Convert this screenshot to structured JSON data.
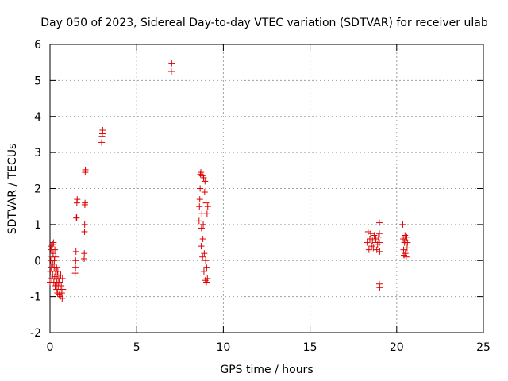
{
  "chart_data": {
    "type": "scatter",
    "title": "Day 050 of 2023, Sidereal Day-to-day VTEC variation (SDTVAR) for receiver ulab",
    "xlabel": "GPS time / hours",
    "ylabel": "SDTVAR / TECUs",
    "xlim": [
      0,
      25
    ],
    "ylim": [
      -2,
      6
    ],
    "xticks": [
      0,
      5,
      10,
      15,
      20,
      25
    ],
    "yticks": [
      -2,
      -1,
      0,
      1,
      2,
      3,
      4,
      5,
      6
    ],
    "grid": true,
    "legend": "none",
    "marker": "+",
    "color": "#dd0000",
    "series": [
      {
        "name": "SDTVAR",
        "points": [
          [
            0.0,
            -0.6
          ],
          [
            0.02,
            -0.3
          ],
          [
            0.04,
            0.0
          ],
          [
            0.05,
            0.3
          ],
          [
            0.06,
            0.4
          ],
          [
            0.08,
            -0.2
          ],
          [
            0.1,
            -0.5
          ],
          [
            0.12,
            0.1
          ],
          [
            0.14,
            0.45
          ],
          [
            0.15,
            -0.4
          ],
          [
            0.17,
            -0.1
          ],
          [
            0.18,
            0.2
          ],
          [
            0.2,
            0.5
          ],
          [
            0.22,
            -0.6
          ],
          [
            0.24,
            -0.2
          ],
          [
            0.25,
            0.0
          ],
          [
            0.27,
            -0.45
          ],
          [
            0.28,
            0.3
          ],
          [
            0.3,
            -0.7
          ],
          [
            0.32,
            -0.3
          ],
          [
            0.33,
            0.1
          ],
          [
            0.35,
            -0.5
          ],
          [
            0.37,
            -0.8
          ],
          [
            0.38,
            -0.2
          ],
          [
            0.4,
            -0.6
          ],
          [
            0.42,
            -0.4
          ],
          [
            0.43,
            -0.9
          ],
          [
            0.45,
            -0.3
          ],
          [
            0.47,
            -0.7
          ],
          [
            0.5,
            -0.5
          ],
          [
            0.52,
            -0.95
          ],
          [
            0.55,
            -0.6
          ],
          [
            0.58,
            -0.8
          ],
          [
            0.6,
            -1.0
          ],
          [
            0.62,
            -0.4
          ],
          [
            0.65,
            -0.7
          ],
          [
            0.68,
            -0.9
          ],
          [
            0.7,
            -1.05
          ],
          [
            0.72,
            -0.5
          ],
          [
            0.75,
            -0.8
          ],
          [
            1.45,
            -0.35
          ],
          [
            1.47,
            -0.2
          ],
          [
            1.48,
            0.0
          ],
          [
            1.5,
            0.25
          ],
          [
            1.52,
            1.18
          ],
          [
            1.54,
            1.2
          ],
          [
            1.55,
            1.6
          ],
          [
            1.57,
            1.7
          ],
          [
            1.97,
            0.05
          ],
          [
            1.98,
            0.2
          ],
          [
            1.99,
            0.8
          ],
          [
            2.0,
            1.0
          ],
          [
            2.01,
            1.55
          ],
          [
            2.02,
            1.6
          ],
          [
            2.03,
            2.45
          ],
          [
            2.04,
            2.52
          ],
          [
            2.98,
            3.28
          ],
          [
            3.0,
            3.45
          ],
          [
            3.02,
            3.52
          ],
          [
            3.04,
            3.62
          ],
          [
            7.0,
            5.25
          ],
          [
            7.02,
            5.48
          ],
          [
            8.6,
            1.1
          ],
          [
            8.62,
            1.5
          ],
          [
            8.64,
            1.7
          ],
          [
            8.66,
            2.0
          ],
          [
            8.68,
            2.4
          ],
          [
            8.7,
            2.45
          ],
          [
            8.72,
            0.4
          ],
          [
            8.74,
            0.9
          ],
          [
            8.76,
            1.3
          ],
          [
            8.78,
            2.35
          ],
          [
            8.8,
            0.1
          ],
          [
            8.82,
            0.6
          ],
          [
            8.84,
            1.0
          ],
          [
            8.86,
            2.3
          ],
          [
            8.88,
            -0.3
          ],
          [
            8.9,
            0.2
          ],
          [
            8.92,
            1.9
          ],
          [
            8.94,
            2.2
          ],
          [
            8.96,
            -0.55
          ],
          [
            8.98,
            0.0
          ],
          [
            9.0,
            1.6
          ],
          [
            9.02,
            -0.6
          ],
          [
            9.04,
            -0.2
          ],
          [
            9.06,
            1.3
          ],
          [
            9.08,
            -0.5
          ],
          [
            9.1,
            1.5
          ],
          [
            18.3,
            0.5
          ],
          [
            18.35,
            0.8
          ],
          [
            18.4,
            0.3
          ],
          [
            18.45,
            0.6
          ],
          [
            18.5,
            0.75
          ],
          [
            18.55,
            0.4
          ],
          [
            18.6,
            0.55
          ],
          [
            18.65,
            0.35
          ],
          [
            18.7,
            0.7
          ],
          [
            18.75,
            0.5
          ],
          [
            18.8,
            0.6
          ],
          [
            18.85,
            0.3
          ],
          [
            18.9,
            0.45
          ],
          [
            18.95,
            0.65
          ],
          [
            19.0,
            1.05
          ],
          [
            19.0,
            0.75
          ],
          [
            19.0,
            0.5
          ],
          [
            19.02,
            0.25
          ],
          [
            19.0,
            -0.65
          ],
          [
            19.02,
            -0.75
          ],
          [
            20.35,
            1.0
          ],
          [
            20.38,
            0.6
          ],
          [
            20.4,
            0.3
          ],
          [
            20.42,
            0.15
          ],
          [
            20.45,
            0.5
          ],
          [
            20.48,
            0.7
          ],
          [
            20.5,
            0.2
          ],
          [
            20.52,
            0.55
          ],
          [
            20.55,
            0.1
          ],
          [
            20.58,
            0.65
          ],
          [
            20.6,
            0.35
          ],
          [
            20.62,
            0.5
          ]
        ]
      }
    ]
  }
}
